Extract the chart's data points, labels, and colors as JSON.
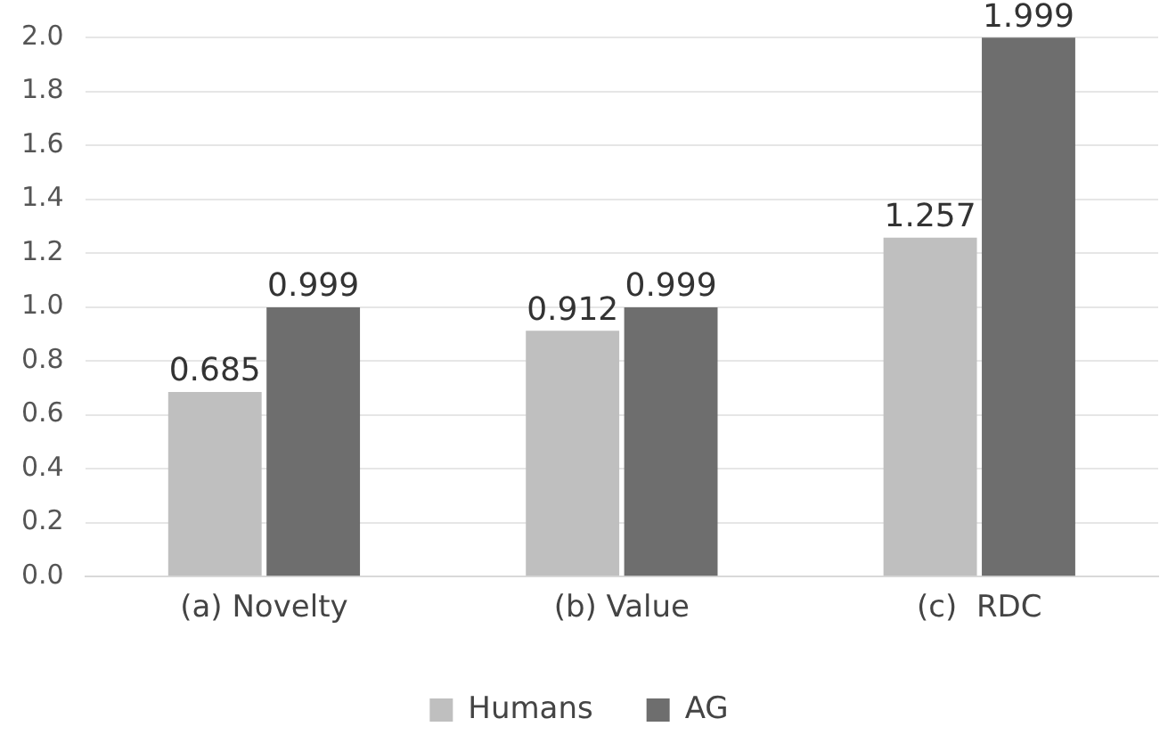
{
  "chart_data": {
    "type": "bar",
    "categories": [
      "(a) Novelty",
      "(b) Value",
      "(c)  RDC"
    ],
    "series": [
      {
        "name": "Humans",
        "color": "#bfbfbf",
        "values": [
          0.685,
          0.912,
          1.257
        ]
      },
      {
        "name": "AG",
        "color": "#6e6e6e",
        "values": [
          0.999,
          0.999,
          1.999
        ]
      }
    ],
    "ylim": [
      0,
      2
    ],
    "yticks": [
      "0.0",
      "0.2",
      "0.4",
      "0.6",
      "0.8",
      "1.0",
      "1.2",
      "1.4",
      "1.6",
      "1.8",
      "2.0"
    ],
    "grid": "y",
    "legend": "bottom",
    "data_labels": true
  }
}
